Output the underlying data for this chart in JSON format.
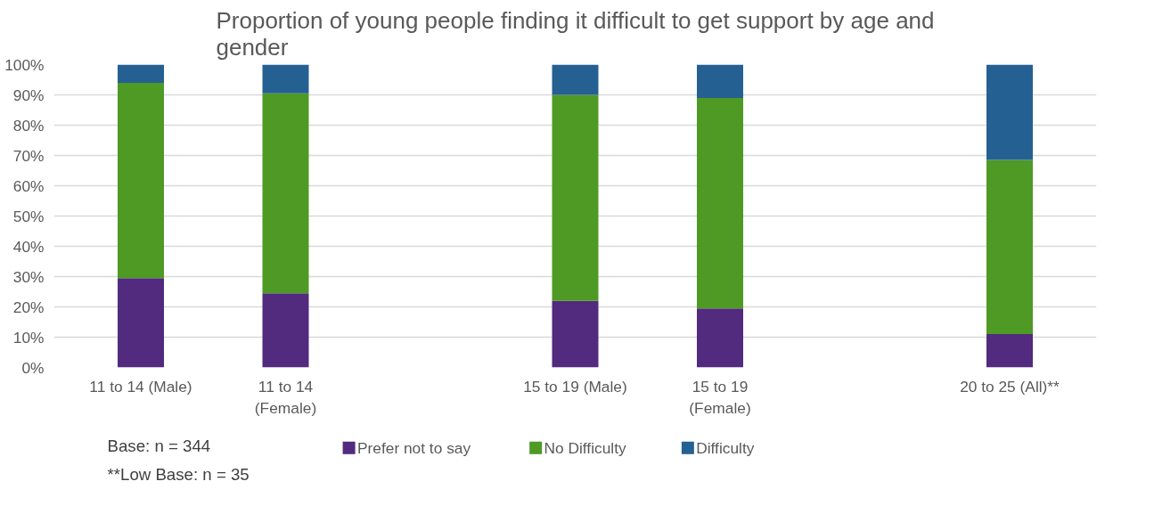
{
  "chart_data": {
    "type": "bar",
    "stacked": true,
    "title": "Proportion of young people finding it difficult to get support by age and gender",
    "categories": [
      "11 to 14 (Male)",
      "11 to 14 (Female)",
      null,
      "15 to 19 (Male)",
      "15 to 19 (Female)",
      null,
      "20 to 25 (All)**"
    ],
    "series": [
      {
        "name": "Prefer not to say",
        "color": "#522a7e",
        "values": [
          29.5,
          24.5,
          null,
          22,
          19.5,
          null,
          11
        ]
      },
      {
        "name": "No Difficulty",
        "color": "#4e9a25",
        "values": [
          64.5,
          66,
          null,
          68,
          69.5,
          null,
          57.5
        ]
      },
      {
        "name": "Difficulty",
        "color": "#256093",
        "values": [
          6,
          9.5,
          null,
          10,
          11,
          null,
          31.5
        ]
      }
    ],
    "ylim": [
      0,
      100
    ],
    "yticks": [
      {
        "value": 0,
        "label": "0%"
      },
      {
        "value": 10,
        "label": "10%"
      },
      {
        "value": 20,
        "label": "20%"
      },
      {
        "value": 30,
        "label": "30%"
      },
      {
        "value": 40,
        "label": "40%"
      },
      {
        "value": 50,
        "label": "50%"
      },
      {
        "value": 60,
        "label": "60%"
      },
      {
        "value": 70,
        "label": "70%"
      },
      {
        "value": 80,
        "label": "80%"
      },
      {
        "value": 90,
        "label": "90%"
      },
      {
        "value": 100,
        "label": "100%"
      }
    ],
    "grid": "y",
    "legend": "bottom",
    "annotations": [
      "Base: n = 344",
      "**Low Base: n = 35"
    ]
  }
}
